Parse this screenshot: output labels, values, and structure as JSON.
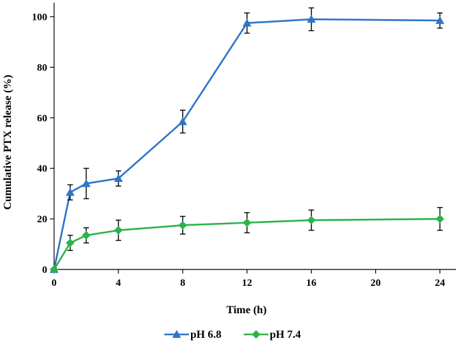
{
  "chart_data": {
    "type": "line",
    "title": "",
    "xlabel": "Time (h)",
    "ylabel": "Cumulative PTX release (%)",
    "xlim": [
      0,
      25
    ],
    "ylim": [
      0,
      105
    ],
    "xticks": [
      0,
      4,
      8,
      12,
      16,
      20,
      24
    ],
    "yticks": [
      0,
      20,
      40,
      60,
      80,
      100
    ],
    "grid": false,
    "legend_position": "bottom-center",
    "series": [
      {
        "name": "pH 6.8",
        "color": "#2E75C8",
        "marker": "triangle",
        "x": [
          0,
          1,
          2,
          4,
          8,
          12,
          16,
          24
        ],
        "y": [
          0,
          30.5,
          34,
          36,
          58.5,
          97.5,
          99,
          98.5
        ],
        "error": [
          0,
          3,
          6,
          3,
          4.5,
          4,
          4.5,
          3
        ]
      },
      {
        "name": "pH 7.4",
        "color": "#2DB34A",
        "marker": "diamond",
        "x": [
          0,
          1,
          2,
          4,
          8,
          12,
          16,
          24
        ],
        "y": [
          0,
          10.5,
          13.5,
          15.5,
          17.5,
          18.5,
          19.5,
          20
        ],
        "error": [
          0,
          3,
          3,
          4,
          3.5,
          4,
          4,
          4.5
        ]
      }
    ]
  }
}
